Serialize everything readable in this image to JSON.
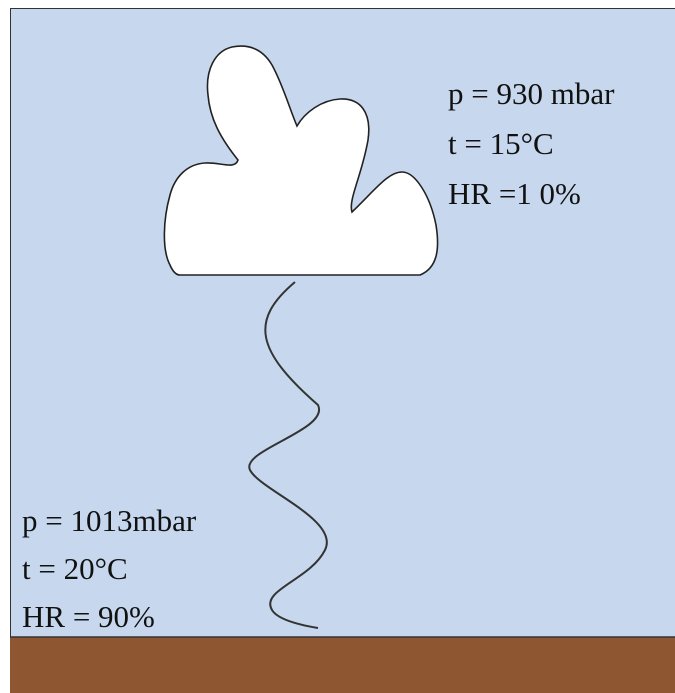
{
  "upper": {
    "pressure": "p = 930 mbar",
    "temperature": "t = 15°C",
    "humidity": "HR =1 0%"
  },
  "lower": {
    "pressure": "p = 1013mbar",
    "temperature": "t = 20°C",
    "humidity": "HR = 90%"
  }
}
